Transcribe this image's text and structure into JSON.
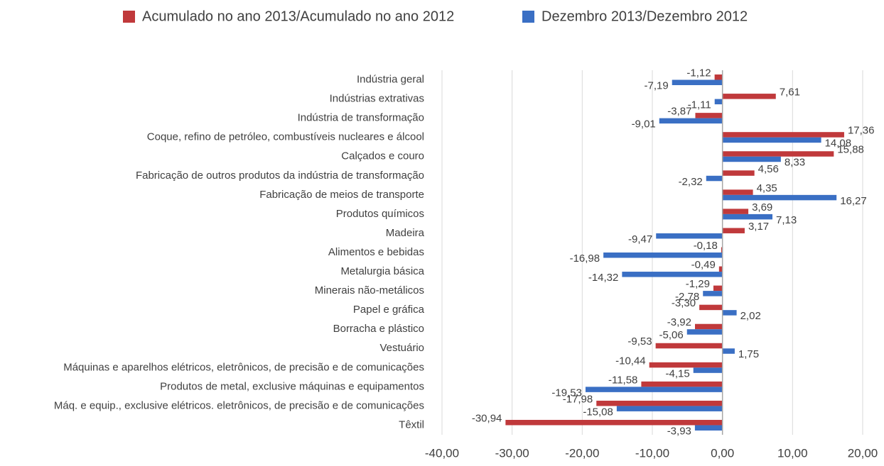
{
  "chart_data": {
    "type": "bar",
    "orientation": "horizontal",
    "grid": true,
    "legend": "top",
    "categories": [
      "Indústria geral",
      "Indústrias extrativas",
      "Indústria de transformação",
      "Coque, refino de petróleo, combustíveis nucleares e álcool",
      "Calçados e couro",
      "Fabricação de outros produtos da indústria de transformação",
      "Fabricação de meios de transporte",
      "Produtos químicos",
      "Madeira",
      "Alimentos e bebidas",
      "Metalurgia básica",
      "Minerais não-metálicos",
      "Papel e gráfica",
      "Borracha e plástico",
      "Vestuário",
      "Máquinas e aparelhos elétricos, eletrônicos, de precisão e de comunicações",
      "Produtos de metal, exclusive máquinas e equipamentos",
      "Máq. e equip., exclusive elétricos. eletrônicos, de precisão e de comunicações",
      "Têxtil"
    ],
    "series": [
      {
        "name": "Acumulado no ano 2013/Acumulado no ano 2012",
        "color": "#c0393b",
        "values": [
          -1.12,
          7.61,
          -3.87,
          17.36,
          15.88,
          4.56,
          4.35,
          3.69,
          3.17,
          -0.18,
          -0.49,
          -1.29,
          -3.3,
          -3.92,
          -9.53,
          -10.44,
          -11.58,
          -17.98,
          -30.94
        ],
        "value_labels": [
          "-1,12",
          "7,61",
          "-3,87",
          "17,36",
          "15,88",
          "4,56",
          "4,35",
          "3,69",
          "3,17",
          "-0,18",
          "-0,49",
          "-1,29",
          "-3,30",
          "-3,92",
          "-9,53",
          "-10,44",
          "-11,58",
          "-17,98",
          "-30,94"
        ]
      },
      {
        "name": "Dezembro 2013/Dezembro 2012",
        "color": "#3a6fc4",
        "values": [
          -7.19,
          -1.11,
          -9.01,
          14.08,
          8.33,
          -2.32,
          16.27,
          7.13,
          -9.47,
          -16.98,
          -14.32,
          -2.78,
          2.02,
          -5.06,
          1.75,
          -4.15,
          -19.53,
          -15.08,
          -3.93
        ],
        "value_labels": [
          "-7,19",
          "-1,11",
          "-9,01",
          "14,08",
          "8,33",
          "-2,32",
          "16,27",
          "7,13",
          "-9,47",
          "-16,98",
          "-14,32",
          "-2,78",
          "2,02",
          "-5,06",
          "1,75",
          "-4,15",
          "-19,53",
          "-15,08",
          "-3,93"
        ]
      }
    ],
    "xlim": [
      -40,
      20
    ],
    "xticks": [
      {
        "value": -40,
        "label": "-40,00"
      },
      {
        "value": -30,
        "label": "-30,00"
      },
      {
        "value": -20,
        "label": "-20,00"
      },
      {
        "value": -10,
        "label": "-10,00"
      },
      {
        "value": 0,
        "label": "0,00"
      },
      {
        "value": 10,
        "label": "10,00"
      },
      {
        "value": 20,
        "label": "20,00"
      }
    ]
  }
}
